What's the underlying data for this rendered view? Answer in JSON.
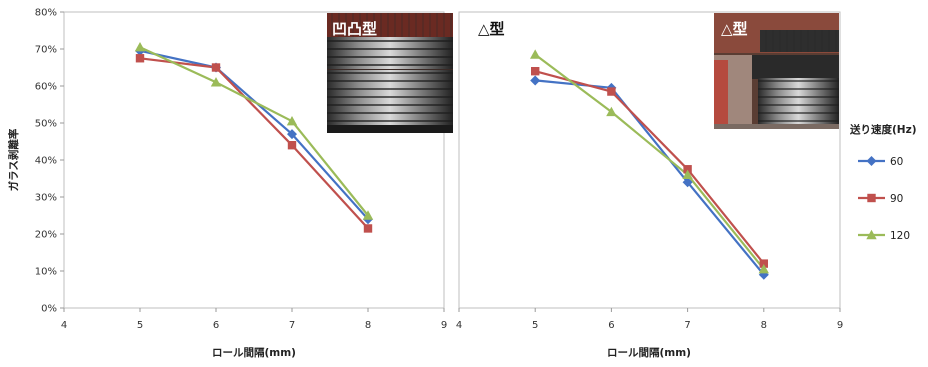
{
  "chart_data": [
    {
      "type": "line",
      "panel_label": "",
      "photo_label": "凹凸型",
      "title": "",
      "xlabel": "ロール間隔(mm)",
      "ylabel": "ガラス剥離率",
      "xlim": [
        4,
        9
      ],
      "ylim": [
        0,
        80
      ],
      "x_ticks": [
        "4",
        "5",
        "6",
        "7",
        "8",
        "9"
      ],
      "y_ticks": [
        "0%",
        "10%",
        "20%",
        "30%",
        "40%",
        "50%",
        "60%",
        "70%",
        "80%"
      ],
      "grid": false,
      "x": [
        5,
        6,
        7,
        8
      ],
      "series": [
        {
          "name": "60",
          "color": "#4472C4",
          "marker": "diamond",
          "values": [
            69.5,
            65,
            47,
            24
          ]
        },
        {
          "name": "90",
          "color": "#C0504D",
          "marker": "square",
          "values": [
            67.5,
            65,
            44,
            21.5
          ]
        },
        {
          "name": "120",
          "color": "#9BBB59",
          "marker": "triangle",
          "values": [
            70.5,
            61,
            50.5,
            25
          ]
        }
      ]
    },
    {
      "type": "line",
      "panel_label": "△型",
      "photo_label": "△型",
      "title": "",
      "xlabel": "ロール間隔(mm)",
      "ylabel": "",
      "xlim": [
        4,
        9
      ],
      "ylim": [
        0,
        80
      ],
      "x_ticks": [
        "4",
        "5",
        "6",
        "7",
        "8",
        "9"
      ],
      "grid": false,
      "x": [
        5,
        6,
        7,
        8
      ],
      "series": [
        {
          "name": "60",
          "color": "#4472C4",
          "marker": "diamond",
          "values": [
            61.5,
            59.5,
            34,
            9
          ]
        },
        {
          "name": "90",
          "color": "#C0504D",
          "marker": "square",
          "values": [
            64,
            58.5,
            37.5,
            12
          ]
        },
        {
          "name": "120",
          "color": "#9BBB59",
          "marker": "triangle",
          "values": [
            68.5,
            53,
            36,
            10.5
          ]
        }
      ]
    }
  ],
  "legend": {
    "title": "送り速度(Hz)",
    "placement": "right",
    "items": [
      {
        "label": "60",
        "color": "#4472C4",
        "marker": "diamond"
      },
      {
        "label": "90",
        "color": "#C0504D",
        "marker": "square"
      },
      {
        "label": "120",
        "color": "#9BBB59",
        "marker": "triangle"
      }
    ]
  },
  "photos": [
    {
      "label": "凹凸型",
      "subject": "corrugated-roll-photo"
    },
    {
      "label": "△型",
      "subject": "triangle-roll-photo"
    }
  ]
}
